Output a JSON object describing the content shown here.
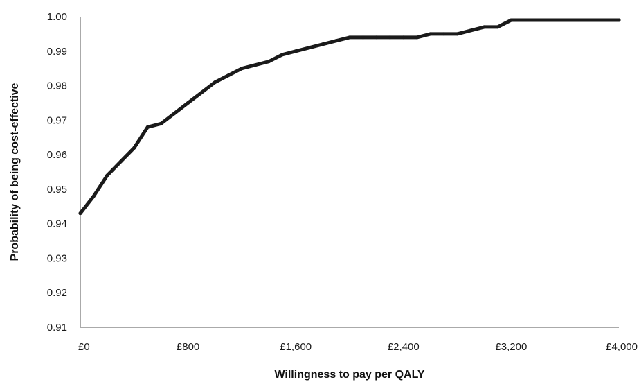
{
  "chart_data": {
    "type": "line",
    "title": "",
    "xlabel": "Willingness to pay per QALY",
    "ylabel": "Probability  of being cost-effective",
    "xlim": [
      0,
      4000
    ],
    "ylim": [
      0.91,
      1.0
    ],
    "x_ticks": [
      0,
      800,
      1600,
      2400,
      3200,
      4000
    ],
    "x_tick_labels": [
      "£0",
      "£800",
      "£1,600",
      "£2,400",
      "£3,200",
      "£4,000"
    ],
    "y_ticks": [
      0.91,
      0.92,
      0.93,
      0.94,
      0.95,
      0.96,
      0.97,
      0.98,
      0.99,
      1.0
    ],
    "y_tick_labels": [
      "0.91",
      "0.92",
      "0.93",
      "0.94",
      "0.95",
      "0.96",
      "0.97",
      "0.98",
      "0.99",
      "1.00"
    ],
    "grid": false,
    "legend": "none",
    "line_color": "#1a1a1a",
    "series": [
      {
        "x": [
          0,
          100,
          200,
          300,
          400,
          500,
          600,
          700,
          800,
          900,
          1000,
          1100,
          1200,
          1300,
          1400,
          1500,
          1600,
          1700,
          1800,
          1900,
          2000,
          2100,
          2200,
          2300,
          2400,
          2500,
          2600,
          2700,
          2800,
          2900,
          3000,
          3100,
          3200,
          3300,
          3400,
          3500,
          3600,
          3700,
          3800,
          3900,
          4000
        ],
        "values": [
          0.943,
          0.948,
          0.954,
          0.958,
          0.962,
          0.968,
          0.969,
          0.972,
          0.975,
          0.978,
          0.981,
          0.983,
          0.985,
          0.986,
          0.987,
          0.989,
          0.99,
          0.991,
          0.992,
          0.993,
          0.994,
          0.994,
          0.994,
          0.994,
          0.994,
          0.994,
          0.995,
          0.995,
          0.995,
          0.996,
          0.997,
          0.997,
          0.999,
          0.999,
          0.999,
          0.999,
          0.999,
          0.999,
          0.999,
          0.999,
          0.999
        ]
      }
    ]
  }
}
